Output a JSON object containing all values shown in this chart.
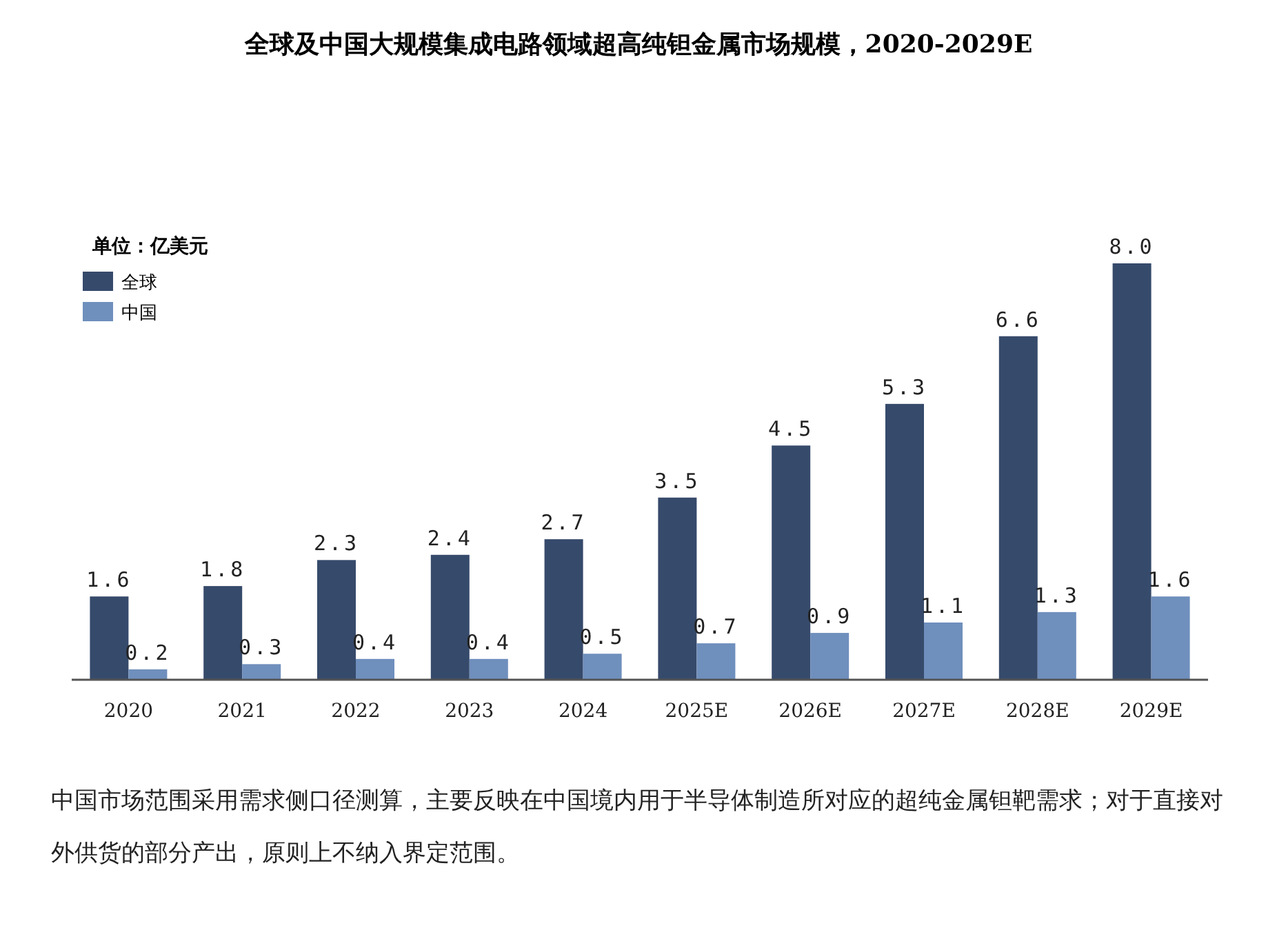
{
  "chart_data": {
    "type": "bar",
    "title": "全球及中国大规模集成电路领域超高纯钽金属市场规模，2020-2029E",
    "ylabel": "单位：亿美元",
    "categories": [
      "2020",
      "2021",
      "2022",
      "2023",
      "2024",
      "2025E",
      "2026E",
      "2027E",
      "2028E",
      "2029E"
    ],
    "series": [
      {
        "name": "全球",
        "color": "#364a6b",
        "values": [
          1.6,
          1.8,
          2.3,
          2.4,
          2.7,
          3.5,
          4.5,
          5.3,
          6.6,
          8.0
        ],
        "value_labels": [
          "1.6",
          "1.8",
          "2.3",
          "2.4",
          "2.7",
          "3.5",
          "4.5",
          "5.3",
          "6.6",
          "8.0"
        ]
      },
      {
        "name": "中国",
        "color": "#6f8fbd",
        "values": [
          0.2,
          0.3,
          0.4,
          0.4,
          0.5,
          0.7,
          0.9,
          1.1,
          1.3,
          1.6
        ],
        "value_labels": [
          "0.2",
          "0.3",
          "0.4",
          "0.4",
          "0.5",
          "0.7",
          "0.9",
          "1.1",
          "1.3",
          "1.6"
        ]
      }
    ],
    "legend": "top left",
    "annotations": [
      "中国市场范围采用需求侧口径测算，主要反映在中国境内用于半导体制造所对应的超纯金属钽靶需求；对于直接对外供货的部分产出，原则上不纳入界定范围。"
    ]
  }
}
